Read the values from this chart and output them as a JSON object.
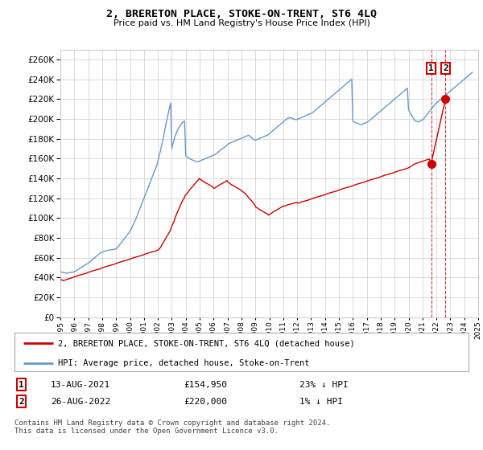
{
  "title": "2, BRERETON PLACE, STOKE-ON-TRENT, ST6 4LQ",
  "subtitle": "Price paid vs. HM Land Registry's House Price Index (HPI)",
  "ylim": [
    0,
    270000
  ],
  "yticks": [
    0,
    20000,
    40000,
    60000,
    80000,
    100000,
    120000,
    140000,
    160000,
    180000,
    200000,
    220000,
    240000,
    260000
  ],
  "xlim": [
    1995,
    2025
  ],
  "background_color": "#ffffff",
  "grid_color": "#cccccc",
  "hpi_color": "#6699cc",
  "price_color": "#cc0000",
  "legend_label_price": "2, BRERETON PLACE, STOKE-ON-TRENT, ST6 4LQ (detached house)",
  "legend_label_hpi": "HPI: Average price, detached house, Stoke-on-Trent",
  "transaction1_label": "1",
  "transaction1_date": "13-AUG-2021",
  "transaction1_price": "£154,950",
  "transaction1_hpi": "23% ↓ HPI",
  "transaction1_year": 2021.62,
  "transaction1_value": 154950,
  "transaction2_label": "2",
  "transaction2_date": "26-AUG-2022",
  "transaction2_price": "£220,000",
  "transaction2_hpi": "1% ↓ HPI",
  "transaction2_year": 2022.65,
  "transaction2_value": 220000,
  "footer": "Contains HM Land Registry data © Crown copyright and database right 2024.\nThis data is licensed under the Open Government Licence v3.0.",
  "hpi_x": [
    1995.0,
    1995.08,
    1995.17,
    1995.25,
    1995.33,
    1995.42,
    1995.5,
    1995.58,
    1995.67,
    1995.75,
    1995.83,
    1995.92,
    1996.0,
    1996.08,
    1996.17,
    1996.25,
    1996.33,
    1996.42,
    1996.5,
    1996.58,
    1996.67,
    1996.75,
    1996.83,
    1996.92,
    1997.0,
    1997.08,
    1997.17,
    1997.25,
    1997.33,
    1997.42,
    1997.5,
    1997.58,
    1997.67,
    1997.75,
    1997.83,
    1997.92,
    1998.0,
    1998.08,
    1998.17,
    1998.25,
    1998.33,
    1998.42,
    1998.5,
    1998.58,
    1998.67,
    1998.75,
    1998.83,
    1998.92,
    1999.0,
    1999.08,
    1999.17,
    1999.25,
    1999.33,
    1999.42,
    1999.5,
    1999.58,
    1999.67,
    1999.75,
    1999.83,
    1999.92,
    2000.0,
    2000.08,
    2000.17,
    2000.25,
    2000.33,
    2000.42,
    2000.5,
    2000.58,
    2000.67,
    2000.75,
    2000.83,
    2000.92,
    2001.0,
    2001.08,
    2001.17,
    2001.25,
    2001.33,
    2001.42,
    2001.5,
    2001.58,
    2001.67,
    2001.75,
    2001.83,
    2001.92,
    2002.0,
    2002.08,
    2002.17,
    2002.25,
    2002.33,
    2002.42,
    2002.5,
    2002.58,
    2002.67,
    2002.75,
    2002.83,
    2002.92,
    2003.0,
    2003.08,
    2003.17,
    2003.25,
    2003.33,
    2003.42,
    2003.5,
    2003.58,
    2003.67,
    2003.75,
    2003.83,
    2003.92,
    2004.0,
    2004.08,
    2004.17,
    2004.25,
    2004.33,
    2004.42,
    2004.5,
    2004.58,
    2004.67,
    2004.75,
    2004.83,
    2004.92,
    2005.0,
    2005.08,
    2005.17,
    2005.25,
    2005.33,
    2005.42,
    2005.5,
    2005.58,
    2005.67,
    2005.75,
    2005.83,
    2005.92,
    2006.0,
    2006.08,
    2006.17,
    2006.25,
    2006.33,
    2006.42,
    2006.5,
    2006.58,
    2006.67,
    2006.75,
    2006.83,
    2006.92,
    2007.0,
    2007.08,
    2007.17,
    2007.25,
    2007.33,
    2007.42,
    2007.5,
    2007.58,
    2007.67,
    2007.75,
    2007.83,
    2007.92,
    2008.0,
    2008.08,
    2008.17,
    2008.25,
    2008.33,
    2008.42,
    2008.5,
    2008.58,
    2008.67,
    2008.75,
    2008.83,
    2008.92,
    2009.0,
    2009.08,
    2009.17,
    2009.25,
    2009.33,
    2009.42,
    2009.5,
    2009.58,
    2009.67,
    2009.75,
    2009.83,
    2009.92,
    2010.0,
    2010.08,
    2010.17,
    2010.25,
    2010.33,
    2010.42,
    2010.5,
    2010.58,
    2010.67,
    2010.75,
    2010.83,
    2010.92,
    2011.0,
    2011.08,
    2011.17,
    2011.25,
    2011.33,
    2011.42,
    2011.5,
    2011.58,
    2011.67,
    2011.75,
    2011.83,
    2011.92,
    2012.0,
    2012.08,
    2012.17,
    2012.25,
    2012.33,
    2012.42,
    2012.5,
    2012.58,
    2012.67,
    2012.75,
    2012.83,
    2012.92,
    2013.0,
    2013.08,
    2013.17,
    2013.25,
    2013.33,
    2013.42,
    2013.5,
    2013.58,
    2013.67,
    2013.75,
    2013.83,
    2013.92,
    2014.0,
    2014.08,
    2014.17,
    2014.25,
    2014.33,
    2014.42,
    2014.5,
    2014.58,
    2014.67,
    2014.75,
    2014.83,
    2014.92,
    2015.0,
    2015.08,
    2015.17,
    2015.25,
    2015.33,
    2015.42,
    2015.5,
    2015.58,
    2015.67,
    2015.75,
    2015.83,
    2015.92,
    2016.0,
    2016.08,
    2016.17,
    2016.25,
    2016.33,
    2016.42,
    2016.5,
    2016.58,
    2016.67,
    2016.75,
    2016.83,
    2016.92,
    2017.0,
    2017.08,
    2017.17,
    2017.25,
    2017.33,
    2017.42,
    2017.5,
    2017.58,
    2017.67,
    2017.75,
    2017.83,
    2017.92,
    2018.0,
    2018.08,
    2018.17,
    2018.25,
    2018.33,
    2018.42,
    2018.5,
    2018.58,
    2018.67,
    2018.75,
    2018.83,
    2018.92,
    2019.0,
    2019.08,
    2019.17,
    2019.25,
    2019.33,
    2019.42,
    2019.5,
    2019.58,
    2019.67,
    2019.75,
    2019.83,
    2019.92,
    2020.0,
    2020.08,
    2020.17,
    2020.25,
    2020.33,
    2020.42,
    2020.5,
    2020.58,
    2020.67,
    2020.75,
    2020.83,
    2020.92,
    2021.0,
    2021.08,
    2021.17,
    2021.25,
    2021.33,
    2021.42,
    2021.5,
    2021.58,
    2021.67,
    2021.75,
    2021.83,
    2021.92,
    2022.0,
    2022.08,
    2022.17,
    2022.25,
    2022.33,
    2022.42,
    2022.5,
    2022.58,
    2022.67,
    2022.75,
    2022.83,
    2022.92,
    2023.0,
    2023.08,
    2023.17,
    2023.25,
    2023.33,
    2023.42,
    2023.5,
    2023.58,
    2023.67,
    2023.75,
    2023.83,
    2023.92,
    2024.0,
    2024.08,
    2024.17,
    2024.25,
    2024.33,
    2024.42,
    2024.5,
    2024.58
  ],
  "hpi_y": [
    46000,
    45500,
    45200,
    45000,
    44800,
    44600,
    44500,
    44700,
    44900,
    45100,
    45300,
    45600,
    46000,
    46500,
    47200,
    48000,
    48800,
    49500,
    50200,
    51000,
    51800,
    52500,
    53200,
    53800,
    54500,
    55500,
    56500,
    57500,
    58500,
    59500,
    60500,
    61500,
    62500,
    63500,
    64500,
    65000,
    65500,
    66000,
    66500,
    67000,
    67300,
    67500,
    67700,
    67900,
    68100,
    68300,
    68500,
    68700,
    69000,
    70000,
    71500,
    73000,
    74500,
    76000,
    77500,
    79000,
    80500,
    82000,
    83500,
    85000,
    87000,
    89000,
    91500,
    94000,
    96500,
    99000,
    102000,
    105000,
    108000,
    111000,
    114000,
    117000,
    120000,
    123000,
    126000,
    129000,
    132000,
    135000,
    138000,
    141000,
    144000,
    147000,
    150000,
    153000,
    157000,
    162000,
    167000,
    172000,
    177000,
    183000,
    189000,
    195000,
    200000,
    206000,
    211000,
    216000,
    170000,
    175000,
    179000,
    183000,
    186000,
    189000,
    191000,
    193000,
    195000,
    196000,
    197000,
    198000,
    163000,
    162000,
    161000,
    160000,
    159500,
    159000,
    158500,
    158000,
    157500,
    157200,
    157000,
    157000,
    157500,
    158000,
    158500,
    159000,
    159500,
    160000,
    160500,
    161000,
    161500,
    162000,
    162500,
    163000,
    163500,
    164000,
    164800,
    165500,
    166500,
    167500,
    168500,
    169500,
    170500,
    171000,
    172000,
    173000,
    174000,
    175000,
    175500,
    176000,
    176500,
    177000,
    177500,
    178000,
    178500,
    179000,
    179500,
    180000,
    180500,
    181000,
    181500,
    182000,
    182500,
    183000,
    183500,
    183000,
    182000,
    181000,
    180000,
    179000,
    178500,
    179000,
    179500,
    180000,
    180500,
    181000,
    181500,
    182000,
    182500,
    183000,
    183500,
    184000,
    185000,
    186000,
    187000,
    188000,
    189000,
    190000,
    191000,
    192000,
    193000,
    194000,
    195000,
    196000,
    197000,
    198000,
    199000,
    200000,
    200500,
    201000,
    201500,
    201000,
    200500,
    200000,
    199500,
    199000,
    199500,
    200000,
    200500,
    201000,
    201500,
    202000,
    202500,
    203000,
    203500,
    204000,
    204500,
    205000,
    205500,
    206000,
    207000,
    208000,
    209000,
    210000,
    211000,
    212000,
    213000,
    214000,
    215000,
    216000,
    217000,
    218000,
    219000,
    220000,
    221000,
    222000,
    223000,
    224000,
    225000,
    226000,
    227000,
    228000,
    229000,
    230000,
    231000,
    232000,
    233000,
    234000,
    235000,
    236000,
    237000,
    238000,
    239000,
    240000,
    198000,
    197000,
    196500,
    196000,
    195500,
    195000,
    194500,
    194000,
    194500,
    195000,
    195500,
    196000,
    196500,
    197000,
    198000,
    199000,
    200000,
    201000,
    202000,
    203000,
    204000,
    205000,
    206000,
    207000,
    208000,
    209000,
    210000,
    211000,
    212000,
    213000,
    214000,
    215000,
    216000,
    217000,
    218000,
    219000,
    220000,
    221000,
    222000,
    223000,
    224000,
    225000,
    226000,
    227000,
    228000,
    229000,
    230000,
    231000,
    209000,
    207000,
    205000,
    203000,
    201000,
    199000,
    198000,
    197500,
    197000,
    197500,
    198000,
    198500,
    199000,
    200000,
    201500,
    203000,
    204500,
    206000,
    207500,
    209000,
    210500,
    212000,
    213500,
    215000,
    216000,
    217000,
    218000,
    219000,
    220000,
    221000,
    222000,
    223000,
    224000,
    225000,
    226000,
    227000,
    228000,
    229000,
    230000,
    231000,
    232000,
    233000,
    234000,
    235000,
    236000,
    237000,
    238000,
    239000,
    240000,
    241000,
    242000,
    243000,
    244000,
    245000,
    246000,
    247000,
    248000,
    249000,
    250000,
    251000,
    252000,
    253000,
    254000,
    255000,
    256000,
    257000,
    258000,
    259000
  ],
  "price_x": [
    1995.04,
    1995.12,
    1995.21,
    1995.33,
    1995.42,
    1995.54,
    1995.67,
    1995.79,
    1995.88,
    1995.96,
    1996.04,
    1996.17,
    1996.25,
    1996.38,
    1996.5,
    1996.62,
    1996.75,
    1996.88,
    1996.96,
    1997.04,
    1997.17,
    1997.25,
    1997.38,
    1997.5,
    1997.62,
    1997.75,
    1997.88,
    1997.96,
    1998.04,
    1998.17,
    1998.25,
    1998.38,
    1998.5,
    1998.62,
    1998.75,
    1998.88,
    1998.96,
    1999.04,
    1999.17,
    1999.25,
    1999.38,
    1999.5,
    1999.62,
    1999.75,
    1999.88,
    1999.96,
    2000.04,
    2000.17,
    2000.25,
    2000.38,
    2000.5,
    2000.62,
    2000.75,
    2000.88,
    2000.96,
    2001.04,
    2001.17,
    2001.25,
    2001.38,
    2001.5,
    2001.62,
    2001.75,
    2001.88,
    2001.96,
    2002.04,
    2002.17,
    2002.25,
    2002.38,
    2002.5,
    2002.62,
    2002.75,
    2002.88,
    2002.96,
    2003.04,
    2003.17,
    2003.25,
    2003.38,
    2003.5,
    2003.62,
    2003.75,
    2003.88,
    2003.96,
    2004.04,
    2004.17,
    2004.25,
    2004.38,
    2004.5,
    2004.62,
    2004.75,
    2004.88,
    2004.96,
    2005.04,
    2005.17,
    2005.25,
    2005.38,
    2005.5,
    2005.62,
    2005.75,
    2005.88,
    2005.96,
    2006.04,
    2006.17,
    2006.25,
    2006.38,
    2006.5,
    2006.62,
    2006.75,
    2006.88,
    2006.96,
    2007.04,
    2007.17,
    2007.25,
    2007.38,
    2007.5,
    2007.62,
    2007.75,
    2007.88,
    2007.96,
    2008.04,
    2008.17,
    2008.25,
    2008.38,
    2008.5,
    2008.62,
    2008.75,
    2008.88,
    2008.96,
    2009.04,
    2009.17,
    2009.25,
    2009.38,
    2009.5,
    2009.62,
    2009.75,
    2009.88,
    2009.96,
    2010.04,
    2010.17,
    2010.25,
    2010.38,
    2010.5,
    2010.62,
    2010.75,
    2010.88,
    2010.96,
    2011.04,
    2011.17,
    2011.25,
    2011.38,
    2011.5,
    2011.62,
    2011.75,
    2011.88,
    2011.96,
    2012.04,
    2012.17,
    2012.25,
    2012.38,
    2012.5,
    2012.62,
    2012.75,
    2012.88,
    2012.96,
    2013.04,
    2013.17,
    2013.25,
    2013.38,
    2013.5,
    2013.62,
    2013.75,
    2013.88,
    2013.96,
    2014.04,
    2014.17,
    2014.25,
    2014.38,
    2014.5,
    2014.62,
    2014.75,
    2014.88,
    2014.96,
    2015.04,
    2015.17,
    2015.25,
    2015.38,
    2015.5,
    2015.62,
    2015.75,
    2015.88,
    2015.96,
    2016.04,
    2016.17,
    2016.25,
    2016.38,
    2016.5,
    2016.62,
    2016.75,
    2016.88,
    2016.96,
    2017.04,
    2017.17,
    2017.25,
    2017.38,
    2017.5,
    2017.62,
    2017.75,
    2017.88,
    2017.96,
    2018.04,
    2018.17,
    2018.25,
    2018.38,
    2018.5,
    2018.62,
    2018.75,
    2018.88,
    2018.96,
    2019.04,
    2019.17,
    2019.25,
    2019.38,
    2019.5,
    2019.62,
    2019.75,
    2019.88,
    2019.96,
    2020.04,
    2020.17,
    2020.25,
    2020.38,
    2020.5,
    2020.62,
    2020.75,
    2020.88,
    2020.96,
    2021.04,
    2021.17,
    2021.25,
    2021.38,
    2021.5,
    2021.62,
    2022.65
  ],
  "price_y": [
    38000,
    37500,
    37000,
    37500,
    38000,
    38500,
    39000,
    39500,
    40000,
    40500,
    41000,
    41500,
    42000,
    42500,
    43000,
    43500,
    44000,
    44500,
    45000,
    45500,
    46000,
    46500,
    47000,
    47500,
    48000,
    48500,
    49000,
    49500,
    50000,
    50500,
    51000,
    51500,
    52000,
    52500,
    53000,
    53500,
    54000,
    54500,
    55000,
    55500,
    56000,
    56500,
    57000,
    57500,
    58000,
    58500,
    59000,
    59500,
    60000,
    60500,
    61000,
    61500,
    62000,
    62500,
    63000,
    63500,
    64000,
    64500,
    65000,
    65500,
    66000,
    66500,
    67000,
    67500,
    68000,
    70000,
    72000,
    75000,
    78000,
    81000,
    84000,
    87000,
    90000,
    93000,
    97000,
    101000,
    105000,
    109000,
    113000,
    117000,
    120000,
    123000,
    124000,
    126000,
    128000,
    130000,
    132000,
    134000,
    136000,
    138000,
    140000,
    139000,
    138000,
    137000,
    136000,
    135000,
    134000,
    133000,
    132000,
    131000,
    130000,
    131000,
    132000,
    133000,
    134000,
    135000,
    136000,
    137000,
    138000,
    136000,
    135000,
    134000,
    133000,
    132000,
    131000,
    130000,
    129000,
    128000,
    127000,
    126000,
    125000,
    123000,
    121000,
    119000,
    117000,
    115000,
    113000,
    111000,
    110000,
    109000,
    108000,
    107000,
    106000,
    105000,
    104000,
    103000,
    104000,
    105000,
    106000,
    107000,
    108000,
    109000,
    110000,
    111000,
    112000,
    112000,
    112500,
    113000,
    113500,
    114000,
    114500,
    115000,
    115500,
    116000,
    115000,
    115500,
    116000,
    116500,
    117000,
    117500,
    118000,
    118500,
    119000,
    119500,
    120000,
    120500,
    121000,
    121500,
    122000,
    122500,
    123000,
    123500,
    124000,
    124500,
    125000,
    125500,
    126000,
    126500,
    127000,
    127500,
    128000,
    128500,
    129000,
    129500,
    130000,
    130500,
    131000,
    131500,
    132000,
    132500,
    133000,
    133500,
    134000,
    134500,
    135000,
    135500,
    136000,
    136500,
    137000,
    137500,
    138000,
    138500,
    139000,
    139500,
    140000,
    140500,
    141000,
    141500,
    142000,
    142500,
    143000,
    143500,
    144000,
    144500,
    145000,
    145500,
    146000,
    146500,
    147000,
    147500,
    148000,
    148500,
    149000,
    149500,
    150000,
    150500,
    151000,
    152000,
    153000,
    154000,
    155000,
    155500,
    156000,
    156500,
    157000,
    157500,
    158000,
    158500,
    159000,
    159500,
    154950,
    220000
  ]
}
